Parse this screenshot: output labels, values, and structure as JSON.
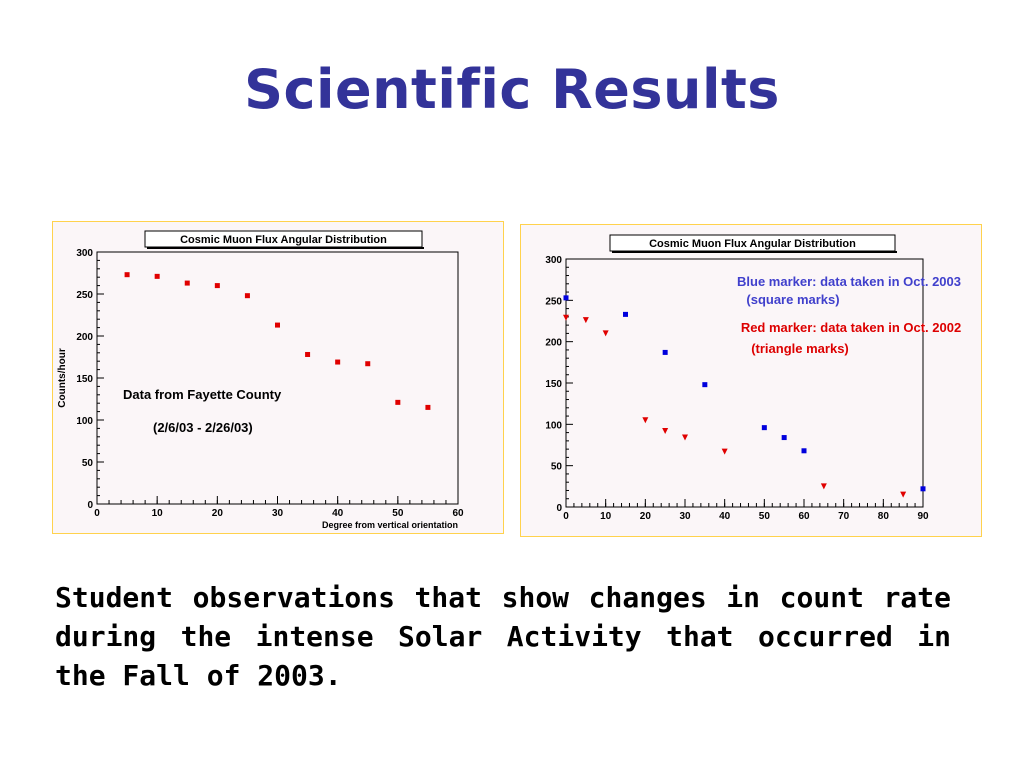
{
  "slide": {
    "title": "Scientific Results",
    "caption": "Student observations that show changes in count rate during the intense Solar Activity that occurred in the Fall of 2003."
  },
  "colors": {
    "title": "#333399",
    "frame_border": "#ffd24d",
    "frame_fill": "#fbf6f8",
    "red_series": "#e00000",
    "blue_series": "#0000dd",
    "blue_annotation": "#4040cc",
    "red_annotation": "#dd0000"
  },
  "chart_data": [
    {
      "type": "scatter",
      "title": "Cosmic Muon Flux Angular Distribution",
      "xlabel": "Degree from vertical orientation",
      "ylabel": "Counts/hour",
      "xlim": [
        0,
        60
      ],
      "ylim": [
        0,
        300
      ],
      "x_ticks": [
        0,
        10,
        20,
        30,
        40,
        50,
        60
      ],
      "y_ticks": [
        0,
        50,
        100,
        150,
        200,
        250,
        300
      ],
      "grid": false,
      "annotations": [
        "Data from Fayette County",
        "(2/6/03 - 2/26/03)"
      ],
      "series": [
        {
          "marker": "square",
          "color": "#e00000",
          "x": [
            5,
            10,
            15,
            20,
            25,
            30,
            35,
            40,
            45,
            50,
            55
          ],
          "y": [
            273,
            271,
            263,
            260,
            248,
            213,
            178,
            169,
            167,
            121,
            115
          ]
        }
      ]
    },
    {
      "type": "scatter",
      "title": "Cosmic Muon Flux Angular Distribution",
      "xlabel": "",
      "ylabel": "",
      "xlim": [
        0,
        90
      ],
      "ylim": [
        0,
        300
      ],
      "x_ticks": [
        0,
        10,
        20,
        30,
        40,
        50,
        60,
        70,
        80,
        90
      ],
      "y_ticks": [
        0,
        50,
        100,
        150,
        200,
        250,
        300
      ],
      "grid": false,
      "annotations": [
        {
          "text": "Blue marker:  data taken in Oct. 2003",
          "color": "#4040cc"
        },
        {
          "text": "(square marks)",
          "color": "#4040cc"
        },
        {
          "text": "Red marker:  data taken in Oct. 2002",
          "color": "#dd0000"
        },
        {
          "text": "(triangle marks)",
          "color": "#dd0000"
        }
      ],
      "series": [
        {
          "marker": "square",
          "color": "#0000dd",
          "x": [
            0,
            15,
            25,
            35,
            50,
            55,
            60,
            90
          ],
          "y": [
            253,
            233,
            187,
            148,
            96,
            84,
            68,
            22
          ]
        },
        {
          "marker": "triangle",
          "color": "#e00000",
          "x": [
            0,
            5,
            10,
            20,
            25,
            30,
            40,
            65,
            85
          ],
          "y": [
            229,
            226,
            210,
            105,
            92,
            84,
            67,
            25,
            15
          ]
        }
      ]
    }
  ]
}
